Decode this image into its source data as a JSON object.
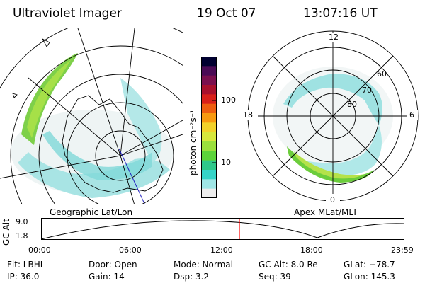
{
  "header": {
    "title": "Ultraviolet Imager",
    "date": "19 Oct 07",
    "time": "13:07:16 UT"
  },
  "colorbar": {
    "unit_label": "photon cm⁻²s⁻¹",
    "ticks": [
      "100",
      "10"
    ],
    "colors": [
      "#000030",
      "#4a0a55",
      "#7a0f4e",
      "#a8102d",
      "#d8201a",
      "#ee5e10",
      "#f89a10",
      "#f2d22a",
      "#d7e83c",
      "#9be03c",
      "#5cd43a",
      "#2ec88a",
      "#35d4c8",
      "#9fe6e6",
      "#ededed"
    ]
  },
  "left_panel": {
    "caption": "Geographic Lat/Lon"
  },
  "right_panel": {
    "caption": "Apex  MLat/MLT",
    "mlt_labels": {
      "top": "12",
      "left": "18",
      "right": "6",
      "bottom": "0"
    },
    "lat_labels": [
      "60",
      "70",
      "80"
    ]
  },
  "gc_alt_plot": {
    "ylabel": "GC Alt",
    "yticks": [
      "9.0",
      "1.8"
    ],
    "xticks": [
      "00:00",
      "06:00",
      "12:00",
      "18:00",
      "23:59"
    ],
    "marker_color": "#ff0000"
  },
  "info": {
    "flt": "Flt: LBHL",
    "ip": "IP: 36.0",
    "door": "Door: Open",
    "gain": "Gain: 14",
    "mode": "Mode: Normal",
    "dsp": "Dsp:     3.2",
    "gcalt": "GC Alt: 8.0 Re",
    "seq": "Seq: 39",
    "glat": "GLat: −78.7",
    "glon": "GLon: 145.3"
  }
}
